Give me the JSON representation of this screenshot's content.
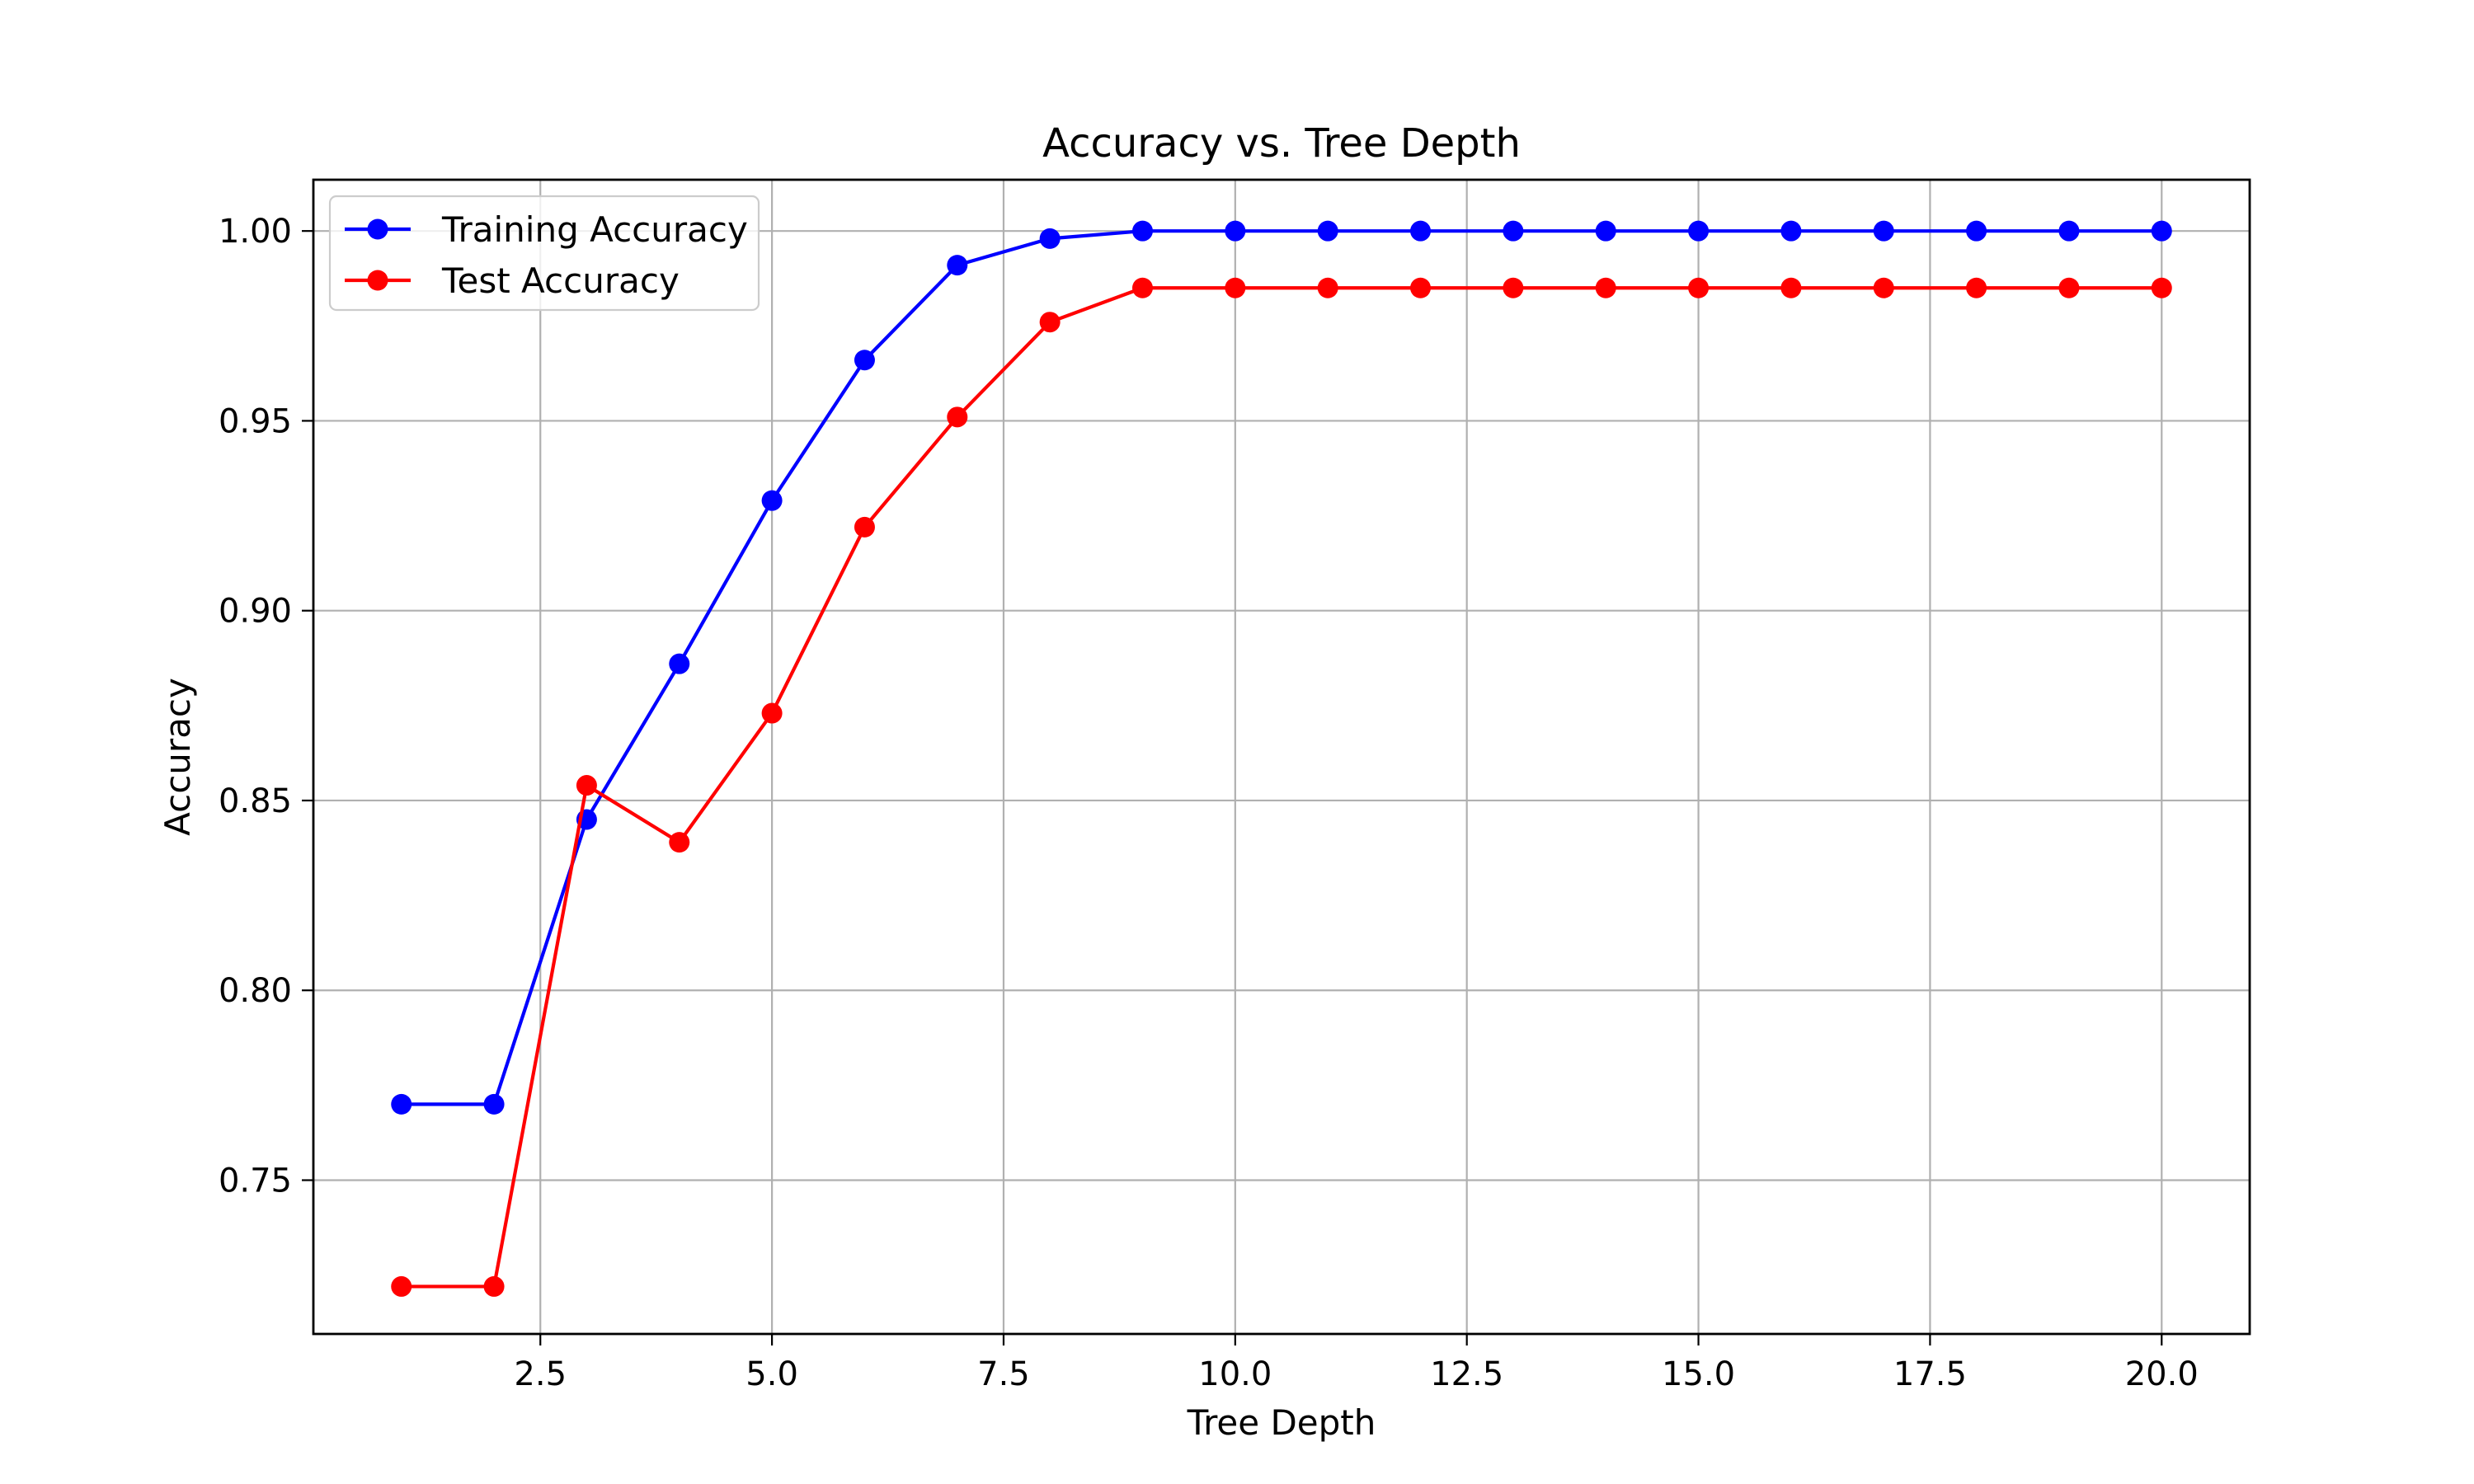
{
  "chart_data": {
    "type": "line",
    "title": "Accuracy vs. Tree Depth",
    "xlabel": "Tree Depth",
    "ylabel": "Accuracy",
    "x": [
      1,
      2,
      3,
      4,
      5,
      6,
      7,
      8,
      9,
      10,
      11,
      12,
      13,
      14,
      15,
      16,
      17,
      18,
      19,
      20
    ],
    "xlim": [
      0.05,
      20.95
    ],
    "ylim": [
      0.7095,
      1.0135
    ],
    "xticks": [
      2.5,
      5.0,
      7.5,
      10.0,
      12.5,
      15.0,
      17.5,
      20.0
    ],
    "xtick_labels": [
      "2.5",
      "5.0",
      "7.5",
      "10.0",
      "12.5",
      "15.0",
      "17.5",
      "20.0"
    ],
    "yticks": [
      0.75,
      0.8,
      0.85,
      0.9,
      0.95,
      1.0
    ],
    "ytick_labels": [
      "0.75",
      "0.80",
      "0.85",
      "0.90",
      "0.95",
      "1.00"
    ],
    "grid": true,
    "legend_position": "top-left",
    "series": [
      {
        "name": "Training Accuracy",
        "color": "#0000ff",
        "marker": "circle",
        "values": [
          0.77,
          0.77,
          0.845,
          0.886,
          0.929,
          0.966,
          0.991,
          0.998,
          1.0,
          1.0,
          1.0,
          1.0,
          1.0,
          1.0,
          1.0,
          1.0,
          1.0,
          1.0,
          1.0,
          1.0
        ]
      },
      {
        "name": "Test Accuracy",
        "color": "#ff0000",
        "marker": "circle",
        "values": [
          0.722,
          0.722,
          0.854,
          0.839,
          0.873,
          0.922,
          0.951,
          0.976,
          0.985,
          0.985,
          0.985,
          0.985,
          0.985,
          0.985,
          0.985,
          0.985,
          0.985,
          0.985,
          0.985,
          0.985
        ]
      }
    ]
  }
}
